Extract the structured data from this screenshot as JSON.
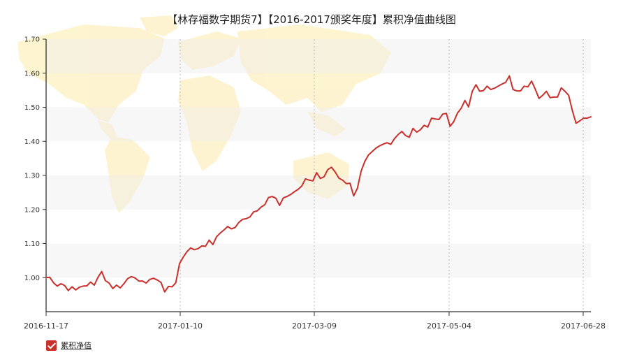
{
  "chart_data": {
    "type": "line",
    "title": "【林存福数字期货7】【2016-2017颁奖年度】累积净值曲线图",
    "ylim": [
      0.9,
      1.7
    ],
    "y_ticks": [
      "1.00",
      "1.10",
      "1.20",
      "1.30",
      "1.40",
      "1.50",
      "1.60",
      "1.70"
    ],
    "x_ticks": [
      "2016-11-17",
      "2017-01-10",
      "2017-03-09",
      "2017-05-04",
      "2017-06-28"
    ],
    "grid": true,
    "legend_position": "bottom-left",
    "series": [
      {
        "name": "累积净值",
        "color": "#c9302c",
        "values": [
          1.0,
          1.001,
          0.985,
          0.975,
          0.982,
          0.977,
          0.962,
          0.973,
          0.964,
          0.972,
          0.975,
          0.976,
          0.987,
          0.978,
          1.001,
          1.018,
          0.991,
          0.984,
          0.968,
          0.978,
          0.97,
          0.982,
          0.997,
          1.003,
          0.999,
          0.99,
          0.99,
          0.984,
          0.995,
          0.998,
          0.993,
          0.986,
          0.958,
          0.974,
          0.973,
          0.985,
          1.041,
          1.06,
          1.076,
          1.087,
          1.082,
          1.085,
          1.093,
          1.092,
          1.11,
          1.097,
          1.12,
          1.131,
          1.14,
          1.15,
          1.143,
          1.147,
          1.162,
          1.171,
          1.173,
          1.178,
          1.193,
          1.196,
          1.207,
          1.214,
          1.235,
          1.238,
          1.233,
          1.212,
          1.234,
          1.238,
          1.244,
          1.252,
          1.259,
          1.269,
          1.29,
          1.286,
          1.284,
          1.308,
          1.291,
          1.296,
          1.317,
          1.324,
          1.31,
          1.292,
          1.286,
          1.276,
          1.277,
          1.24,
          1.262,
          1.312,
          1.341,
          1.36,
          1.37,
          1.38,
          1.387,
          1.392,
          1.396,
          1.391,
          1.408,
          1.42,
          1.429,
          1.417,
          1.412,
          1.438,
          1.427,
          1.434,
          1.447,
          1.442,
          1.468,
          1.466,
          1.464,
          1.48,
          1.482,
          1.444,
          1.458,
          1.483,
          1.497,
          1.52,
          1.501,
          1.547,
          1.566,
          1.547,
          1.549,
          1.562,
          1.552,
          1.556,
          1.562,
          1.568,
          1.573,
          1.592,
          1.552,
          1.548,
          1.548,
          1.562,
          1.56,
          1.577,
          1.553,
          1.526,
          1.535,
          1.547,
          1.528,
          1.53,
          1.53,
          1.557,
          1.547,
          1.535,
          1.49,
          1.453,
          1.46,
          1.468,
          1.468,
          1.472
        ]
      }
    ]
  },
  "legend": {
    "items": [
      {
        "label": "累积净值"
      }
    ]
  }
}
